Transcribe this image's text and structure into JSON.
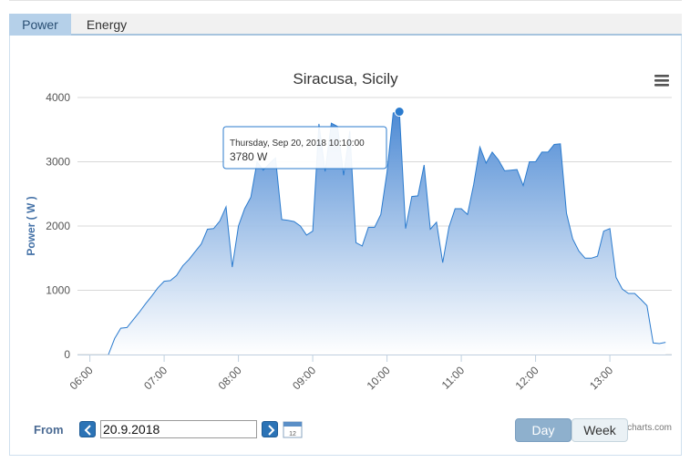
{
  "tabs": [
    {
      "label": "Power",
      "active": true
    },
    {
      "label": "Energy",
      "active": false
    }
  ],
  "chart_data": {
    "type": "area",
    "title": "Siracusa, Sicily",
    "ylabel": "Power ( W )",
    "xlabel": "",
    "ylim": [
      0,
      4000
    ],
    "y_ticks": [
      0,
      1000,
      2000,
      3000,
      4000
    ],
    "x_ticks": [
      "06:00",
      "07:00",
      "08:00",
      "09:00",
      "10:00",
      "11:00",
      "12:00",
      "13:00"
    ],
    "grid": true,
    "series": [
      {
        "x": [
          "06:15",
          "06:20",
          "06:25",
          "06:30",
          "06:35",
          "06:40",
          "06:45",
          "06:50",
          "06:55",
          "07:00",
          "07:05",
          "07:10",
          "07:15",
          "07:20",
          "07:25",
          "07:30",
          "07:35",
          "07:40",
          "07:45",
          "07:50",
          "07:55",
          "08:00",
          "08:05",
          "08:10",
          "08:15",
          "08:20",
          "08:25",
          "08:30",
          "08:35",
          "08:40",
          "08:45",
          "08:50",
          "08:55",
          "09:00",
          "09:05",
          "09:10",
          "09:15",
          "09:20",
          "09:25",
          "09:30",
          "09:35",
          "09:40",
          "09:45",
          "09:50",
          "09:55",
          "10:00",
          "10:05",
          "10:10",
          "10:15",
          "10:20",
          "10:25",
          "10:30",
          "10:35",
          "10:40",
          "10:45",
          "10:50",
          "10:55",
          "11:00",
          "11:05",
          "11:10",
          "11:15",
          "11:20",
          "11:25",
          "11:30",
          "11:35",
          "11:40",
          "11:45",
          "11:50",
          "11:55",
          "12:00",
          "12:05",
          "12:10",
          "12:15",
          "12:20",
          "12:25",
          "12:30",
          "12:35",
          "12:40",
          "12:45",
          "12:50",
          "12:55",
          "13:00",
          "13:05",
          "13:10",
          "13:15",
          "13:20",
          "13:25",
          "13:30",
          "13:35",
          "13:40",
          "13:45"
        ],
        "values": [
          0,
          250,
          410,
          420,
          540,
          660,
          790,
          910,
          1040,
          1140,
          1150,
          1230,
          1380,
          1480,
          1600,
          1720,
          1950,
          1960,
          2080,
          2300,
          1360,
          2000,
          2270,
          2450,
          3000,
          2870,
          2970,
          3060,
          2100,
          2090,
          2070,
          2000,
          1860,
          1920,
          3590,
          2850,
          3600,
          3550,
          2790,
          3480,
          1740,
          1690,
          1980,
          1980,
          2180,
          2840,
          3760,
          3780,
          1960,
          2460,
          2470,
          2950,
          1950,
          2060,
          1430,
          1980,
          2270,
          2270,
          2180,
          2650,
          3230,
          2980,
          3150,
          3030,
          2860,
          2870,
          2880,
          2630,
          3000,
          3000,
          3150,
          3150,
          3270,
          3280,
          2200,
          1800,
          1610,
          1500,
          1500,
          1530,
          1920,
          1960,
          1200,
          1020,
          950,
          950,
          860,
          760,
          180,
          170,
          190
        ]
      }
    ],
    "tooltip": {
      "date": "Thursday, Sep 20, 2018 10:10:00",
      "value": "3780 W",
      "point_index": 47
    },
    "credit": "charts.com",
    "colors": {
      "line": "#2b7bce",
      "fill_top": "#4d8ad4",
      "fill_bottom": "#ffffff",
      "title": "#333333"
    }
  },
  "controls": {
    "from_label": "From",
    "date_value": "20.9.2018",
    "calendar_icon_day": "12",
    "day_label": "Day",
    "week_label": "Week"
  }
}
